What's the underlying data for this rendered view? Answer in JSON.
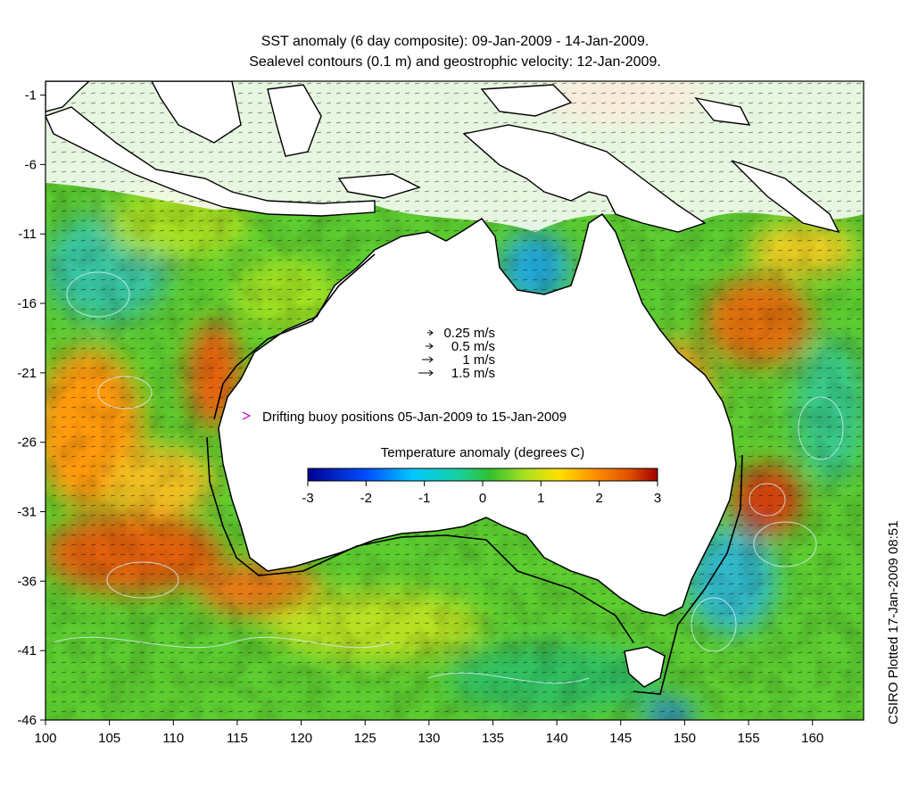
{
  "title": {
    "line1": "SST anomaly (6 day composite): 09-Jan-2009 - 14-Jan-2009.",
    "line2": "Sealevel contours (0.1 m) and geostrophic velocity: 12-Jan-2009."
  },
  "axes": {
    "lon_ticks": [
      100,
      105,
      110,
      115,
      120,
      125,
      130,
      135,
      140,
      145,
      150,
      155,
      160
    ],
    "lat_ticks": [
      -1,
      -6,
      -11,
      -16,
      -21,
      -26,
      -31,
      -36,
      -41,
      -46
    ],
    "lon_range": [
      100,
      164
    ],
    "lat_range": [
      -46,
      0
    ]
  },
  "velocity_legend": [
    {
      "label": "0.25 m/s",
      "speed": 0.25
    },
    {
      "label": "0.5 m/s",
      "speed": 0.5
    },
    {
      "label": "1 m/s",
      "speed": 1
    },
    {
      "label": "1.5 m/s",
      "speed": 1.5
    }
  ],
  "buoy_legend": {
    "label": "Drifting buoy positions 05-Jan-2009 to 15-Jan-2009",
    "color": "#d020d0"
  },
  "colorbar": {
    "title": "Temperature anomaly (degrees C)",
    "ticks": [
      -3,
      -2,
      -1,
      0,
      1,
      2,
      3
    ],
    "colors": [
      "#00008f",
      "#0050ff",
      "#00c8ff",
      "#18d0a0",
      "#30c030",
      "#a8e020",
      "#ffe000",
      "#ff9000",
      "#e05000",
      "#a00000"
    ]
  },
  "credit": "CSIRO Plotted 17-Jan-2009 08:51",
  "colors": {
    "land": "#ffffff",
    "coastline": "#000000",
    "contour": "#c8e8f0",
    "vector": "#000000"
  }
}
